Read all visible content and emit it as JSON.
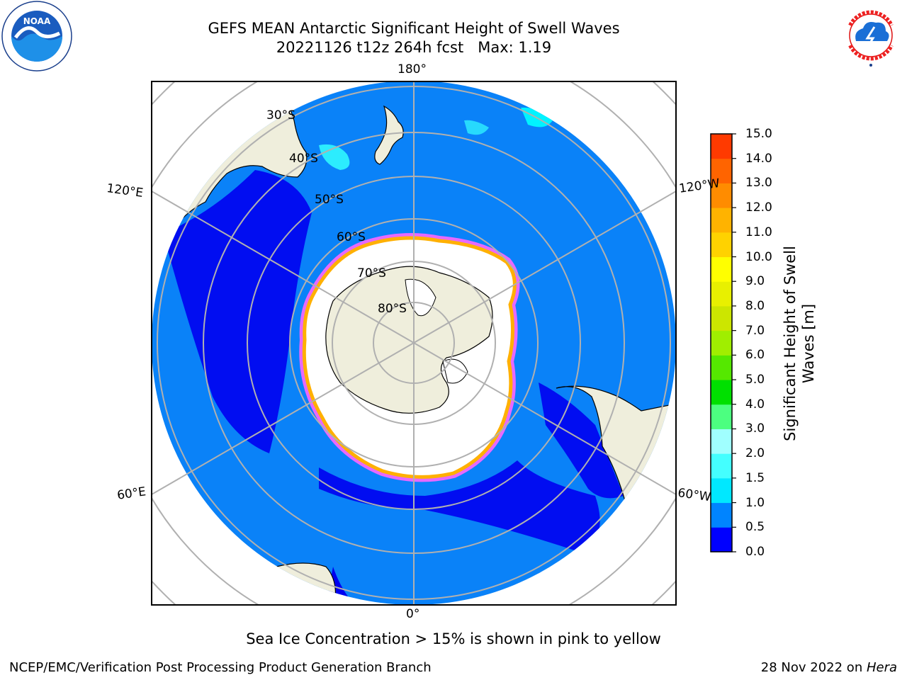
{
  "header": {
    "title_line1": "GEFS MEAN Antarctic Significant Height of Swell Waves",
    "title_line2": "20221126 t12z 264h fcst   Max: 1.19"
  },
  "map": {
    "projection": "south-polar-stereographic",
    "lat_labels": [
      "30°S",
      "40°S",
      "50°S",
      "60°S",
      "70°S",
      "80°S"
    ],
    "lon_labels": {
      "top": "180°",
      "bottom": "0°",
      "upper_left": "120°E",
      "upper_right": "120°W",
      "lower_left": "60°E",
      "lower_right": "60°W"
    },
    "colors": {
      "ocean_low": "#0a82f8",
      "ocean_calm": "#0000f0",
      "swell_light": "#00e6ff",
      "land": "#efeedc",
      "sea_ice": "#ffffff",
      "ice_edge_pink": "#ff66ff",
      "ice_edge_orange": "#ffb000",
      "grid": "#b0b0b0"
    }
  },
  "colorbar": {
    "label_line1": "Significant Height of Swell",
    "label_line2": "Waves [m]",
    "ticks": [
      "0.0",
      "0.5",
      "1.0",
      "1.5",
      "2.0",
      "3.0",
      "4.0",
      "5.0",
      "6.0",
      "7.0",
      "8.0",
      "9.0",
      "10.0",
      "11.0",
      "12.0",
      "13.0",
      "14.0",
      "15.0"
    ],
    "colors": [
      "#0000ff",
      "#0084ff",
      "#00e8ff",
      "#44ffff",
      "#a0ffff",
      "#4cff80",
      "#00e000",
      "#55e800",
      "#a0ee00",
      "#cce600",
      "#e8f000",
      "#ffff00",
      "#ffd200",
      "#ffb300",
      "#ff8c00",
      "#ff6400",
      "#ff3a00"
    ]
  },
  "caption": "Sea Ice Concentration > 15% is shown in pink to yellow",
  "footer": {
    "left": "NCEP/EMC/Verification Post Processing Product Generation Branch",
    "right_prefix": "28 Nov 2022 on ",
    "right_host": "Hera"
  }
}
